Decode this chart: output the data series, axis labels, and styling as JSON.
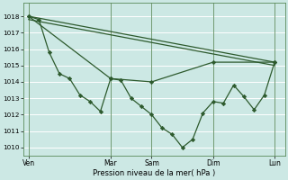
{
  "xlabel": "Pression niveau de la mer( hPa )",
  "bg_color": "#cce8e4",
  "grid_color": "#b8d8d4",
  "line_color": "#2d5a2d",
  "marker_color": "#2d5a2d",
  "ylim": [
    1009.5,
    1018.8
  ],
  "yticks": [
    1010,
    1011,
    1012,
    1013,
    1014,
    1015,
    1016,
    1017,
    1018
  ],
  "day_labels": [
    "Ven",
    "Mar",
    "Sam",
    "Dim",
    "Lun"
  ],
  "day_positions": [
    0,
    16,
    24,
    36,
    48
  ],
  "xlim": [
    -1,
    50
  ],
  "series1": {
    "x": [
      0,
      2,
      4,
      6,
      8,
      10,
      12,
      14,
      16,
      18,
      20,
      22,
      24,
      26,
      28,
      30,
      32,
      34,
      36,
      38,
      40,
      42,
      44,
      46,
      48
    ],
    "y": [
      1018.0,
      1017.8,
      1015.8,
      1014.5,
      1014.2,
      1013.2,
      1012.8,
      1012.2,
      1014.2,
      1014.1,
      1013.0,
      1012.5,
      1012.0,
      1011.2,
      1010.8,
      1010.0,
      1010.5,
      1012.1,
      1012.8,
      1012.7,
      1013.8,
      1013.1,
      1012.3,
      1013.2,
      1015.2
    ]
  },
  "series2": {
    "x": [
      0,
      48
    ],
    "y": [
      1018.0,
      1015.2
    ]
  },
  "series3": {
    "x": [
      0,
      48
    ],
    "y": [
      1017.8,
      1015.0
    ]
  },
  "series4": {
    "x": [
      0,
      16,
      24,
      36,
      48
    ],
    "y": [
      1018.0,
      1014.2,
      1014.0,
      1015.2,
      1015.2
    ]
  }
}
